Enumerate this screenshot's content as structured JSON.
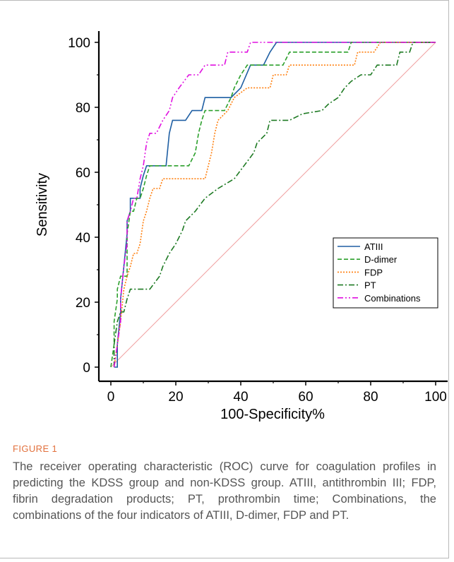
{
  "chart_data": {
    "type": "line",
    "xlabel": "100-Specificity%",
    "ylabel": "Sensitivity",
    "xlim": [
      0,
      100
    ],
    "ylim": [
      0,
      100
    ],
    "xticks": [
      "0",
      "20",
      "40",
      "60",
      "80",
      "100"
    ],
    "yticks": [
      "0",
      "20",
      "40",
      "60",
      "80",
      "100"
    ],
    "legend_position": "bottom-right",
    "grid": false,
    "series": [
      {
        "name": "ATIII",
        "color": "#1f5fa3",
        "dash": "solid",
        "points": [
          [
            1,
            0
          ],
          [
            2,
            0
          ],
          [
            2,
            7
          ],
          [
            3,
            17
          ],
          [
            3,
            21
          ],
          [
            4,
            31
          ],
          [
            5,
            41
          ],
          [
            5,
            45
          ],
          [
            6,
            48
          ],
          [
            6,
            52
          ],
          [
            9,
            52
          ],
          [
            9,
            55
          ],
          [
            10,
            59
          ],
          [
            11,
            62
          ],
          [
            17,
            62
          ],
          [
            18,
            72
          ],
          [
            19,
            76
          ],
          [
            23,
            76
          ],
          [
            25,
            79
          ],
          [
            28,
            79
          ],
          [
            29,
            83
          ],
          [
            35,
            83
          ],
          [
            37,
            83
          ],
          [
            40,
            86
          ],
          [
            43,
            93
          ],
          [
            47,
            93
          ],
          [
            49,
            97
          ],
          [
            51,
            100
          ],
          [
            100,
            100
          ]
        ]
      },
      {
        "name": "D-dimer",
        "color": "#2ca02c",
        "dash": "6,3",
        "points": [
          [
            0,
            0
          ],
          [
            1,
            7
          ],
          [
            1,
            14
          ],
          [
            2,
            21
          ],
          [
            2,
            24
          ],
          [
            3,
            28
          ],
          [
            5,
            28
          ],
          [
            5,
            41
          ],
          [
            6,
            48
          ],
          [
            7,
            48
          ],
          [
            8,
            52
          ],
          [
            9,
            52
          ],
          [
            10,
            55
          ],
          [
            11,
            59
          ],
          [
            12,
            62
          ],
          [
            24,
            62
          ],
          [
            26,
            66
          ],
          [
            27,
            72
          ],
          [
            28,
            76
          ],
          [
            29,
            79
          ],
          [
            35,
            79
          ],
          [
            37,
            83
          ],
          [
            38,
            86
          ],
          [
            40,
            90
          ],
          [
            42,
            93
          ],
          [
            53,
            93
          ],
          [
            55,
            97
          ],
          [
            73,
            97
          ],
          [
            74,
            100
          ],
          [
            100,
            100
          ]
        ]
      },
      {
        "name": "FDP",
        "color": "#ff7f0e",
        "dash": "2,2",
        "points": [
          [
            1,
            0
          ],
          [
            2,
            7
          ],
          [
            3,
            14
          ],
          [
            4,
            24
          ],
          [
            5,
            28
          ],
          [
            6,
            31
          ],
          [
            7,
            35
          ],
          [
            8,
            35
          ],
          [
            9,
            38
          ],
          [
            10,
            45
          ],
          [
            11,
            48
          ],
          [
            12,
            52
          ],
          [
            13,
            55
          ],
          [
            15,
            55
          ],
          [
            16,
            58
          ],
          [
            18,
            58
          ],
          [
            29,
            58
          ],
          [
            30,
            62
          ],
          [
            31,
            66
          ],
          [
            32,
            72
          ],
          [
            33,
            76
          ],
          [
            36,
            79
          ],
          [
            38,
            83
          ],
          [
            42,
            86
          ],
          [
            49,
            86
          ],
          [
            50,
            90
          ],
          [
            54,
            90
          ],
          [
            55,
            93
          ],
          [
            75,
            93
          ],
          [
            76,
            97
          ],
          [
            81,
            97
          ],
          [
            83,
            100
          ],
          [
            100,
            100
          ]
        ]
      },
      {
        "name": "PT",
        "color": "#1e7a23",
        "dash": "8,3,2,3",
        "points": [
          [
            1,
            0
          ],
          [
            1,
            7
          ],
          [
            2,
            14
          ],
          [
            3,
            17
          ],
          [
            4,
            17
          ],
          [
            5,
            21
          ],
          [
            6,
            24
          ],
          [
            12,
            24
          ],
          [
            15,
            28
          ],
          [
            16,
            31
          ],
          [
            18,
            35
          ],
          [
            20,
            38
          ],
          [
            22,
            42
          ],
          [
            23,
            45
          ],
          [
            26,
            48
          ],
          [
            29,
            52
          ],
          [
            33,
            55
          ],
          [
            38,
            58
          ],
          [
            41,
            62
          ],
          [
            44,
            66
          ],
          [
            45,
            69
          ],
          [
            48,
            72
          ],
          [
            49,
            76
          ],
          [
            55,
            76
          ],
          [
            59,
            78
          ],
          [
            65,
            79
          ],
          [
            67,
            81
          ],
          [
            70,
            83
          ],
          [
            72,
            86
          ],
          [
            74,
            88
          ],
          [
            77,
            90
          ],
          [
            80,
            90
          ],
          [
            82,
            93
          ],
          [
            88,
            93
          ],
          [
            89,
            97
          ],
          [
            92,
            97
          ],
          [
            93,
            100
          ],
          [
            100,
            100
          ]
        ]
      },
      {
        "name": "Combinations",
        "color": "#e010e0",
        "dash": "8,3,2,3,2,3",
        "points": [
          [
            1,
            0
          ],
          [
            2,
            7
          ],
          [
            3,
            14
          ],
          [
            3,
            21
          ],
          [
            4,
            31
          ],
          [
            5,
            38
          ],
          [
            5,
            45
          ],
          [
            6,
            48
          ],
          [
            7,
            52
          ],
          [
            8,
            52
          ],
          [
            9,
            58
          ],
          [
            10,
            62
          ],
          [
            11,
            69
          ],
          [
            12,
            72
          ],
          [
            14,
            72
          ],
          [
            16,
            76
          ],
          [
            18,
            79
          ],
          [
            19,
            83
          ],
          [
            21,
            86
          ],
          [
            24,
            90
          ],
          [
            27,
            90
          ],
          [
            29,
            93
          ],
          [
            35,
            93
          ],
          [
            36,
            97
          ],
          [
            42,
            97
          ],
          [
            43,
            100
          ],
          [
            100,
            100
          ]
        ]
      },
      {
        "name": "",
        "color": "#f0a0a0",
        "dash": "solid",
        "points": [
          [
            0,
            0
          ],
          [
            100,
            100
          ]
        ]
      }
    ]
  },
  "caption": {
    "label": "FIGURE 1",
    "text": "The receiver operating characteristic (ROC) curve for coagulation profiles in predicting the KDSS group and non-KDSS group. ATIII, antithrombin III; FDP, fibrin degradation products; PT, prothrombin time; Combinations, the combinations of the four indicators of ATIII, D-dimer, FDP and PT."
  }
}
